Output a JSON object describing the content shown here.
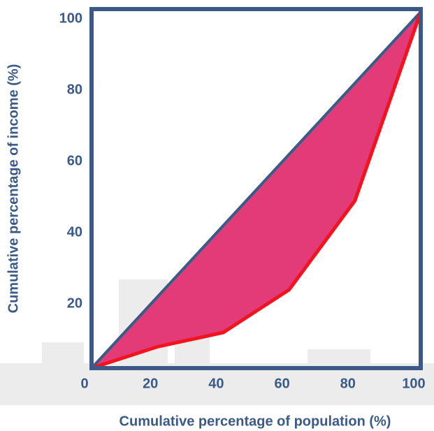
{
  "chart_data": {
    "type": "line",
    "x_label": "Cumulative percentage of population (%)",
    "y_label": "Cumulative percentage of income (%)",
    "x": [
      0,
      20,
      40,
      60,
      80,
      100
    ],
    "series": [
      {
        "color": "#3b5a87",
        "values": [
          0,
          20,
          40,
          60,
          80,
          100
        ]
      },
      {
        "color": "#f0141e",
        "fill": "#e33b77",
        "values": [
          0,
          6,
          10,
          22,
          47,
          100
        ]
      }
    ],
    "xlim": [
      0,
      100
    ],
    "ylim": [
      0,
      100
    ],
    "xticks": [
      0,
      20,
      40,
      60,
      80,
      100
    ],
    "yticks": [
      20,
      40,
      60,
      80,
      100
    ]
  }
}
